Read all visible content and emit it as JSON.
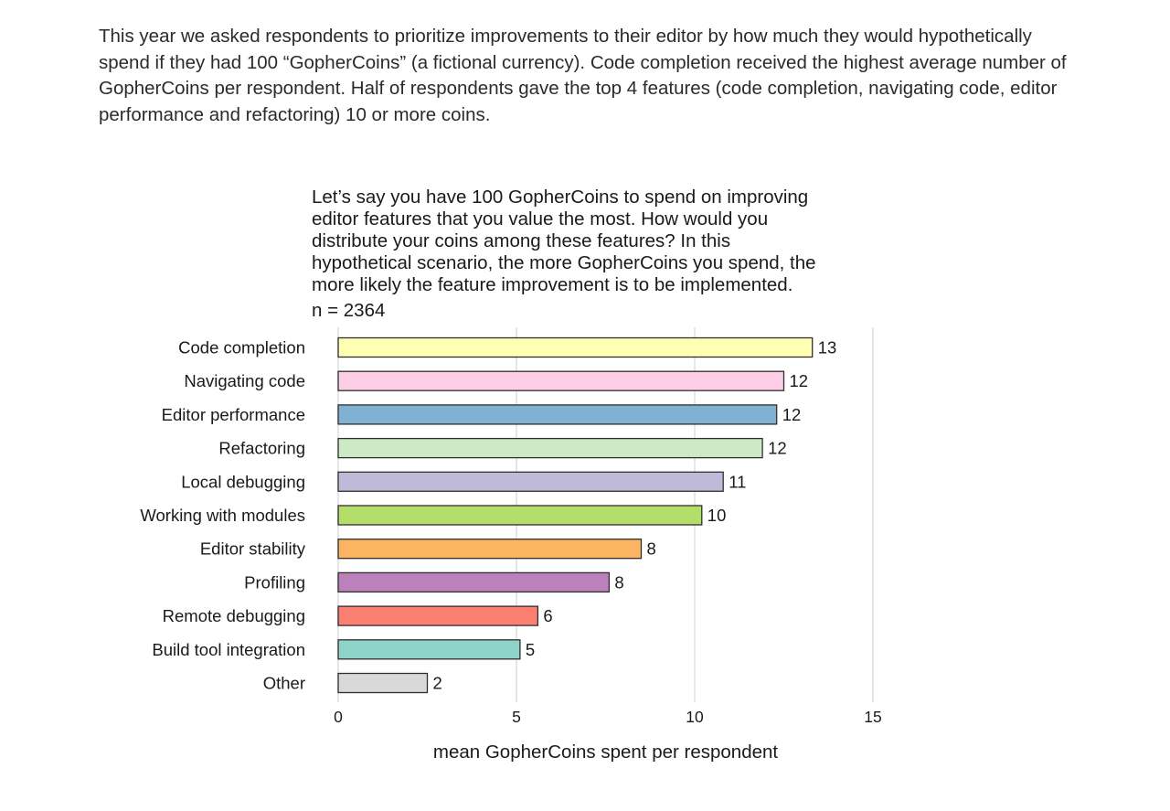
{
  "intro": {
    "text": "This year we asked respondents to prioritize improvements to their editor by how much they would hypothetically spend if they had 100 “GopherCoins” (a fictional currency). Code completion received the highest average number of GopherCoins per respondent. Half of respondents gave the top 4 features (code completion, navigating code, editor performance and refactoring) 10 or more coins."
  },
  "chart_data": {
    "type": "bar",
    "orientation": "horizontal",
    "title_lines": [
      "Let’s say you have 100 GopherCoins to spend on improving",
      "editor features that you value the most. How would you",
      "distribute your coins among these features? In this",
      "hypothetical scenario, the more GopherCoins you spend, the",
      "more likely the feature improvement is to be implemented."
    ],
    "subtitle": "n = 2364",
    "categories": [
      "Code completion",
      "Navigating code",
      "Editor performance",
      "Refactoring",
      "Local debugging",
      "Working with modules",
      "Editor stability",
      "Profiling",
      "Remote debugging",
      "Build tool integration",
      "Other"
    ],
    "values": [
      13.3,
      12.5,
      12.3,
      11.9,
      10.8,
      10.2,
      8.5,
      7.6,
      5.6,
      5.1,
      2.5
    ],
    "value_labels": [
      "13",
      "12",
      "12",
      "12",
      "11",
      "10",
      "8",
      "8",
      "6",
      "5",
      "2"
    ],
    "colors": [
      "#ffffb3",
      "#fdcde5",
      "#80b1d3",
      "#ccebc5",
      "#bebada",
      "#b3de69",
      "#fdb462",
      "#bc80bd",
      "#fb8072",
      "#8dd3c7",
      "#d9d9d9"
    ],
    "xlabel": "mean GopherCoins spent per respondent",
    "xlim": [
      0,
      15
    ],
    "xticks": [
      0,
      5,
      10,
      15
    ],
    "grid": true,
    "legend": "none"
  }
}
